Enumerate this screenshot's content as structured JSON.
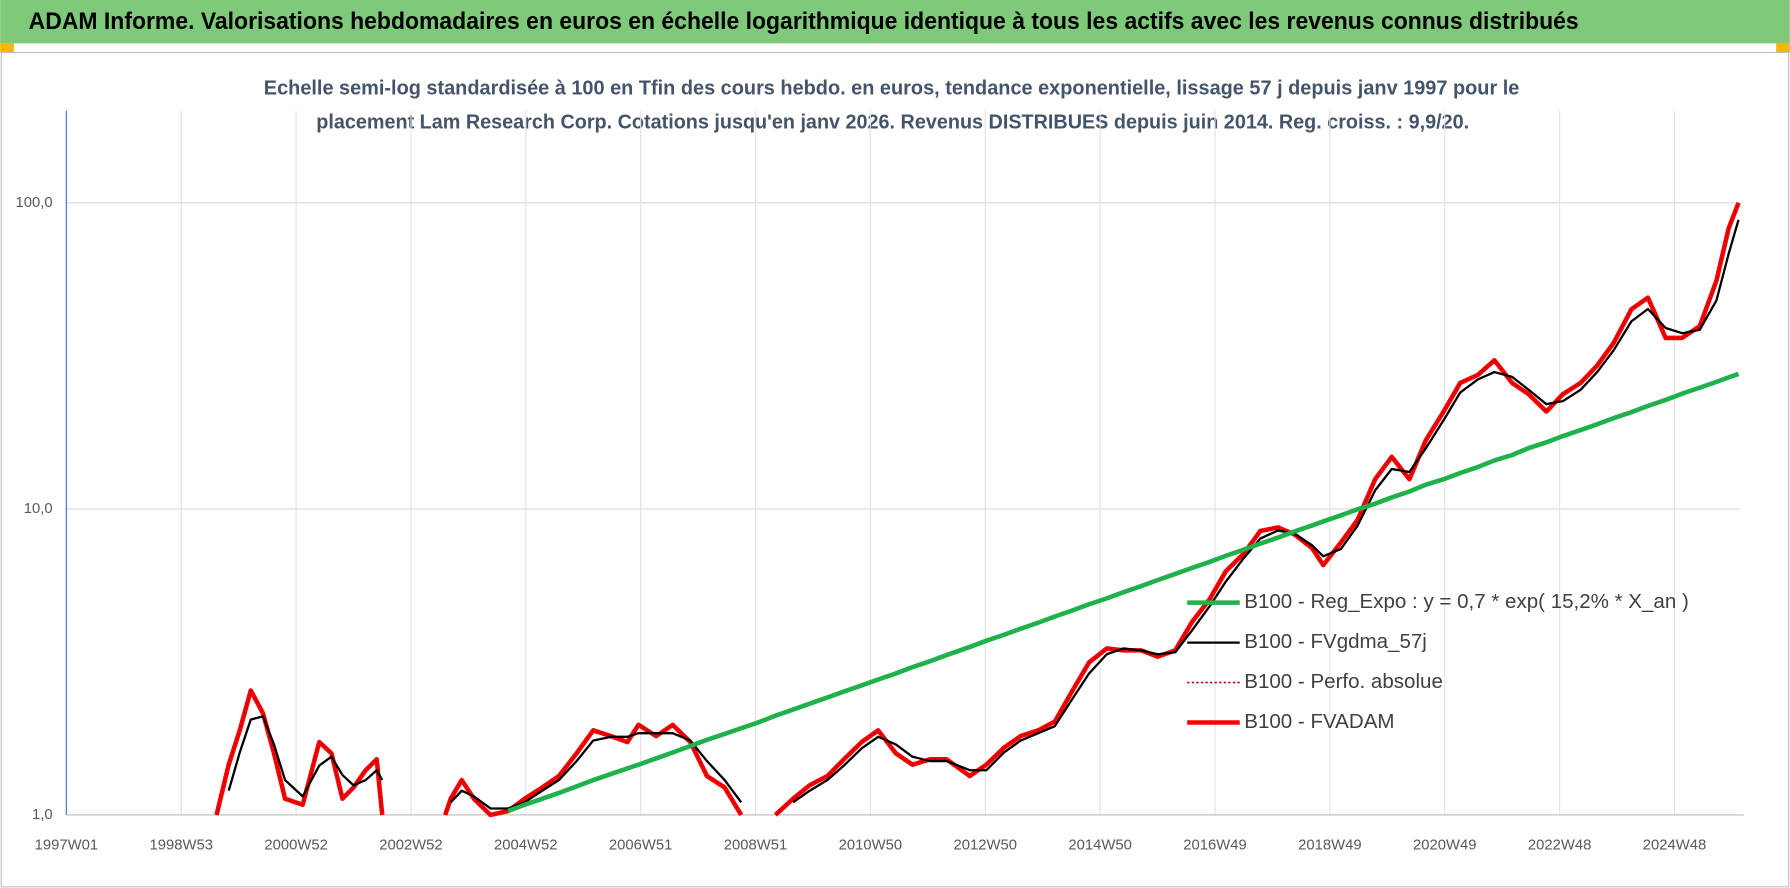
{
  "chart_data": {
    "type": "line",
    "title": "ADAM Informe. Valorisations hebdomadaires en euros en échelle logarithmique identique à tous les actifs avec les revenus connus distribués",
    "subtitle": [
      "Echelle semi-log standardisée à 100 en Tfin des cours hebdo. en euros, tendance exponentielle, lissage 57 j depuis janv 1997 pour le",
      "placement Lam Research Corp. Cotations jusqu'en janv 2026.  Revenus DISTRIBUES depuis juin 2014. Reg. croiss. : 9,9/20."
    ],
    "log_scale": true,
    "grid": true,
    "legend": "right",
    "ylim": [
      1,
      200
    ],
    "yticks": [
      {
        "value": 1,
        "label": "1,0"
      },
      {
        "value": 10,
        "label": "10,0"
      },
      {
        "value": 100,
        "label": "100,0"
      }
    ],
    "xlim": [
      0,
      1515
    ],
    "xticks": [
      {
        "value": 0,
        "label": "1997W01"
      },
      {
        "value": 104,
        "label": "1998W53"
      },
      {
        "value": 208,
        "label": "2000W52"
      },
      {
        "value": 312,
        "label": "2002W52"
      },
      {
        "value": 416,
        "label": "2004W52"
      },
      {
        "value": 520,
        "label": "2006W51"
      },
      {
        "value": 624,
        "label": "2008W51"
      },
      {
        "value": 728,
        "label": "2010W50"
      },
      {
        "value": 832,
        "label": "2012W50"
      },
      {
        "value": 936,
        "label": "2014W50"
      },
      {
        "value": 1040,
        "label": "2016W49"
      },
      {
        "value": 1144,
        "label": "2018W49"
      },
      {
        "value": 1248,
        "label": "2020W49"
      },
      {
        "value": 1352,
        "label": "2022W48"
      },
      {
        "value": 1456,
        "label": "2024W48"
      }
    ],
    "x": [
      136,
      147,
      157,
      167,
      178,
      188,
      198,
      214,
      229,
      240,
      250,
      260,
      271,
      281,
      286,
      312,
      343,
      348,
      358,
      369,
      384,
      400,
      415,
      431,
      446,
      462,
      477,
      493,
      508,
      518,
      534,
      549,
      565,
      580,
      596,
      611,
      627,
      642,
      658,
      673,
      689,
      704,
      720,
      735,
      751,
      766,
      782,
      797,
      818,
      833,
      849,
      864,
      880,
      895,
      911,
      926,
      942,
      957,
      973,
      988,
      1004,
      1019,
      1035,
      1050,
      1066,
      1081,
      1097,
      1112,
      1128,
      1138,
      1154,
      1169,
      1185,
      1200,
      1216,
      1231,
      1247,
      1262,
      1278,
      1293,
      1309,
      1324,
      1340,
      1355,
      1371,
      1386,
      1401,
      1417,
      1432,
      1448,
      1463,
      1479,
      1494,
      1505,
      1514
    ],
    "series": [
      {
        "name": "B100 - Reg_Expo : y = 0,7 * exp( 15,2% *  X_an )",
        "color": "#1fb24a",
        "style": "solid",
        "width": 4,
        "values": [
          null,
          null,
          null,
          null,
          null,
          null,
          null,
          null,
          null,
          null,
          null,
          null,
          null,
          null,
          null,
          null,
          null,
          null,
          null,
          null,
          null,
          1.03,
          1.08,
          1.13,
          1.18,
          1.24,
          1.3,
          1.36,
          1.42,
          1.46,
          1.53,
          1.6,
          1.68,
          1.76,
          1.84,
          1.92,
          2.01,
          2.11,
          2.21,
          2.31,
          2.42,
          2.53,
          2.65,
          2.77,
          2.9,
          3.04,
          3.18,
          3.33,
          3.54,
          3.71,
          3.88,
          4.06,
          4.25,
          4.45,
          4.66,
          4.88,
          5.1,
          5.34,
          5.59,
          5.85,
          6.13,
          6.41,
          6.71,
          7.03,
          7.36,
          7.7,
          8.06,
          8.44,
          8.83,
          9.1,
          9.53,
          9.97,
          10.4,
          10.9,
          11.4,
          12.0,
          12.5,
          13.1,
          13.7,
          14.4,
          15.0,
          15.8,
          16.5,
          17.3,
          18.1,
          18.9,
          19.8,
          20.7,
          21.7,
          22.7,
          23.8,
          24.9,
          26.0,
          26.9,
          27.6
        ]
      },
      {
        "name": "B100 - FVgdma_57j",
        "color": "#000000",
        "style": "solid",
        "width": 2,
        "values": [
          null,
          1.2,
          1.6,
          2.05,
          2.1,
          1.7,
          1.3,
          1.15,
          1.45,
          1.55,
          1.35,
          1.25,
          1.3,
          1.4,
          1.3,
          null,
          null,
          1.1,
          1.2,
          1.15,
          1.05,
          1.05,
          1.1,
          1.2,
          1.3,
          1.5,
          1.75,
          1.8,
          1.8,
          1.85,
          1.85,
          1.85,
          1.75,
          1.5,
          1.3,
          1.1,
          null,
          null,
          1.1,
          1.2,
          1.3,
          1.45,
          1.65,
          1.8,
          1.7,
          1.55,
          1.5,
          1.5,
          1.4,
          1.4,
          1.6,
          1.75,
          1.85,
          1.95,
          2.4,
          2.9,
          3.35,
          3.5,
          3.45,
          3.35,
          3.4,
          4.0,
          4.8,
          5.8,
          6.9,
          8.0,
          8.5,
          8.3,
          7.6,
          7.0,
          7.4,
          8.8,
          11.5,
          13.5,
          13.2,
          15.8,
          19.5,
          24.0,
          26.5,
          28.0,
          27.0,
          24.5,
          22.0,
          22.5,
          24.5,
          28.0,
          33.0,
          41.0,
          45.0,
          39.0,
          37.5,
          38.5,
          48.0,
          68.0,
          88.0
        ]
      },
      {
        "name": "B100 - Perfo. absolue",
        "color": "#c00000",
        "style": "dotted",
        "width": 1.5,
        "values": [
          1.0,
          1.46,
          1.89,
          2.55,
          2.15,
          1.59,
          1.13,
          1.08,
          1.73,
          1.59,
          1.13,
          1.23,
          1.4,
          1.52,
          1.0,
          null,
          1.0,
          1.13,
          1.3,
          1.13,
          1.0,
          1.03,
          1.13,
          1.23,
          1.34,
          1.59,
          1.89,
          1.81,
          1.73,
          1.97,
          1.81,
          1.97,
          1.73,
          1.34,
          1.23,
          1.0,
          null,
          1.0,
          1.13,
          1.25,
          1.34,
          1.52,
          1.73,
          1.89,
          1.59,
          1.46,
          1.52,
          1.52,
          1.34,
          1.46,
          1.66,
          1.81,
          1.89,
          2.02,
          2.55,
          3.15,
          3.5,
          3.45,
          3.45,
          3.29,
          3.45,
          4.26,
          5.06,
          6.27,
          7.14,
          8.47,
          8.7,
          8.25,
          7.44,
          6.55,
          7.77,
          9.2,
          12.5,
          14.8,
          12.5,
          16.8,
          20.8,
          25.8,
          27.4,
          30.6,
          25.8,
          23.7,
          20.8,
          23.7,
          25.8,
          29.4,
          34.9,
          44.9,
          49.0,
          36.2,
          36.2,
          39.6,
          55.7,
          82.4,
          100
        ]
      },
      {
        "name": "B100 - FVADAM",
        "color": "#ff0000",
        "style": "solid",
        "width": 4,
        "values": [
          1.0,
          1.46,
          1.89,
          2.55,
          2.15,
          1.59,
          1.13,
          1.08,
          1.73,
          1.59,
          1.13,
          1.23,
          1.4,
          1.52,
          1.0,
          null,
          1.0,
          1.13,
          1.3,
          1.13,
          1.0,
          1.03,
          1.13,
          1.23,
          1.34,
          1.59,
          1.89,
          1.81,
          1.73,
          1.97,
          1.81,
          1.97,
          1.73,
          1.34,
          1.23,
          1.0,
          null,
          1.0,
          1.13,
          1.25,
          1.34,
          1.52,
          1.73,
          1.89,
          1.59,
          1.46,
          1.52,
          1.52,
          1.34,
          1.46,
          1.66,
          1.81,
          1.89,
          2.02,
          2.55,
          3.15,
          3.5,
          3.45,
          3.45,
          3.29,
          3.45,
          4.26,
          5.06,
          6.27,
          7.14,
          8.47,
          8.7,
          8.25,
          7.44,
          6.55,
          7.77,
          9.2,
          12.5,
          14.8,
          12.5,
          16.8,
          20.8,
          25.8,
          27.4,
          30.6,
          25.8,
          23.7,
          20.8,
          23.7,
          25.8,
          29.4,
          34.9,
          44.9,
          49.0,
          36.2,
          36.2,
          39.6,
          55.7,
          82.4,
          100
        ]
      }
    ]
  }
}
